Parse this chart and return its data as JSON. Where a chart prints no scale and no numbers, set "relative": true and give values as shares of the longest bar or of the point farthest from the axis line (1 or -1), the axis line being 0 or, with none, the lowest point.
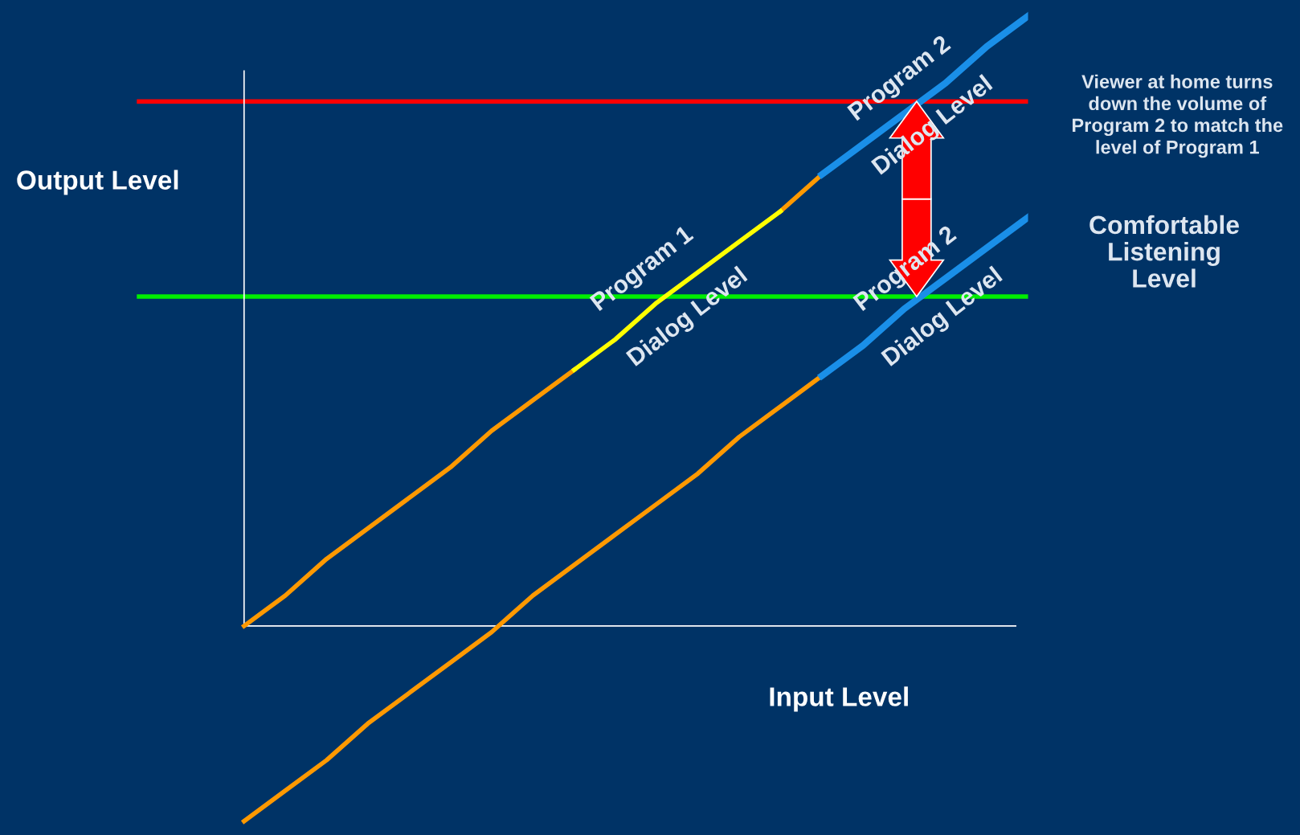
{
  "chart_data": {
    "type": "line",
    "relative": true,
    "xlabel": "Input Level",
    "ylabel": "Output Level",
    "grid": false,
    "categories": [
      null,
      null,
      null,
      null,
      null,
      null,
      null,
      null,
      null,
      null,
      null,
      null,
      null,
      null,
      null,
      null,
      null,
      null,
      null,
      null
    ],
    "series": [
      {
        "color": "#ff9900",
        "values": [
          0,
          0.05,
          0.11,
          0.16,
          0.21,
          0.26,
          0.32,
          0.37,
          0.42,
          null,
          null,
          null,
          null,
          0.68,
          0.74,
          null,
          null,
          null,
          null,
          null
        ]
      },
      {
        "color": "#ffff00",
        "values": [
          null,
          null,
          null,
          null,
          null,
          null,
          null,
          null,
          0.42,
          0.47,
          0.53,
          0.58,
          0.63,
          0.68,
          null,
          null,
          null,
          null,
          null,
          null
        ]
      },
      {
        "color": "#1a8fe8",
        "values": [
          null,
          null,
          null,
          null,
          null,
          null,
          null,
          null,
          null,
          null,
          null,
          null,
          null,
          null,
          0.74,
          0.79,
          0.84,
          0.89,
          0.95,
          1
        ]
      },
      {
        "color": "#ff9900",
        "values": [
          -0.32,
          -0.27,
          -0.22,
          -0.16,
          -0.11,
          -0.06,
          -0.01,
          0.05,
          0.1,
          0.15,
          0.2,
          0.25,
          0.31,
          0.36,
          0.41,
          null,
          null,
          null,
          null,
          null
        ]
      },
      {
        "color": "#1a8fe8",
        "values": [
          null,
          null,
          null,
          null,
          null,
          null,
          null,
          null,
          null,
          null,
          null,
          null,
          null,
          null,
          0.41,
          0.46,
          0.52,
          0.57,
          0.62,
          0.67
        ]
      }
    ],
    "ref_lines": [
      {
        "axis": "y",
        "value": 0.86,
        "color": "#ff0000"
      },
      {
        "axis": "y",
        "value": 0.54,
        "color": "#00ee00",
        "label": "Comfortable Listening Level"
      }
    ],
    "annotations": [
      "Program 1",
      "Dialog Level",
      "Program 2",
      "Dialog Level",
      "Program 2",
      "Dialog Level",
      "Viewer at home turns down the volume of Program 2 to match the level of Program 1"
    ]
  }
}
